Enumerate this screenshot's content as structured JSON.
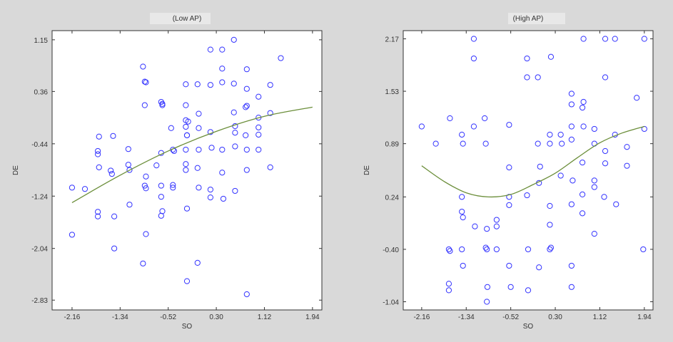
{
  "chart_data": [
    {
      "type": "scatter",
      "title": "(Low AP)",
      "xlabel": "SO",
      "ylabel": "DE",
      "xlim": [
        -2.5,
        2.1
      ],
      "ylim": [
        -2.98,
        1.29
      ],
      "xticks": [
        "-2.16",
        "-1.34",
        "-0.52",
        "0.30",
        "1.12",
        "1.94"
      ],
      "yticks": [
        "1.15",
        "0.36",
        "-0.44",
        "-1.24",
        "-2.04",
        "-2.83"
      ],
      "grid": false,
      "marker_color": "#3333ff",
      "fit_color": "#6b8e3a",
      "points": [
        [
          -2.16,
          -1.11
        ],
        [
          -2.16,
          -1.83
        ],
        [
          -1.94,
          -1.13
        ],
        [
          -1.7,
          -0.33
        ],
        [
          -1.72,
          -0.55
        ],
        [
          -1.72,
          -0.6
        ],
        [
          -1.7,
          -0.8
        ],
        [
          -1.72,
          -1.48
        ],
        [
          -1.72,
          -1.55
        ],
        [
          -1.5,
          -0.85
        ],
        [
          -1.48,
          -0.9
        ],
        [
          -1.46,
          -0.32
        ],
        [
          -1.44,
          -1.55
        ],
        [
          -1.44,
          -2.04
        ],
        [
          -1.2,
          -0.52
        ],
        [
          -1.2,
          -0.76
        ],
        [
          -1.18,
          -0.84
        ],
        [
          -1.18,
          -1.37
        ],
        [
          -0.95,
          0.74
        ],
        [
          -0.92,
          0.51
        ],
        [
          -0.9,
          0.5
        ],
        [
          -0.92,
          0.15
        ],
        [
          -0.9,
          -0.94
        ],
        [
          -0.92,
          -1.08
        ],
        [
          -0.9,
          -1.12
        ],
        [
          -0.9,
          -1.82
        ],
        [
          -0.95,
          -2.27
        ],
        [
          -0.72,
          -0.77
        ],
        [
          -0.64,
          0.2
        ],
        [
          -0.62,
          0.15
        ],
        [
          -0.62,
          0.17
        ],
        [
          -0.64,
          -0.58
        ],
        [
          -0.64,
          -1.08
        ],
        [
          -0.64,
          -1.25
        ],
        [
          -0.62,
          -1.47
        ],
        [
          -0.64,
          -1.54
        ],
        [
          -0.47,
          -0.2
        ],
        [
          -0.44,
          -0.53
        ],
        [
          -0.42,
          -0.55
        ],
        [
          -0.44,
          -1.07
        ],
        [
          -0.44,
          -1.11
        ],
        [
          -0.22,
          -0.18
        ],
        [
          -0.22,
          0.47
        ],
        [
          -0.22,
          -0.53
        ],
        [
          -0.22,
          0.15
        ],
        [
          -0.22,
          -0.08
        ],
        [
          -0.18,
          -0.1
        ],
        [
          -0.2,
          -0.31
        ],
        [
          -0.2,
          -0.31
        ],
        [
          -0.22,
          -0.75
        ],
        [
          -0.22,
          -0.84
        ],
        [
          -0.2,
          -1.43
        ],
        [
          -0.2,
          -2.54
        ],
        [
          -0.02,
          0.47
        ],
        [
          0.0,
          -0.2
        ],
        [
          0.0,
          0.02
        ],
        [
          0.0,
          -0.53
        ],
        [
          -0.02,
          -0.81
        ],
        [
          0.0,
          -1.11
        ],
        [
          -0.02,
          -2.26
        ],
        [
          0.2,
          1.0
        ],
        [
          0.2,
          0.46
        ],
        [
          0.2,
          -0.26
        ],
        [
          0.22,
          -0.5
        ],
        [
          0.2,
          -1.14
        ],
        [
          0.2,
          -1.26
        ],
        [
          0.4,
          1.0
        ],
        [
          0.4,
          0.71
        ],
        [
          0.4,
          0.5
        ],
        [
          0.4,
          -0.53
        ],
        [
          0.4,
          -0.88
        ],
        [
          0.42,
          -1.28
        ],
        [
          0.6,
          1.15
        ],
        [
          0.6,
          0.48
        ],
        [
          0.6,
          0.04
        ],
        [
          0.62,
          -0.17
        ],
        [
          0.62,
          -0.27
        ],
        [
          0.62,
          -0.48
        ],
        [
          0.62,
          -1.16
        ],
        [
          0.82,
          0.7
        ],
        [
          0.82,
          0.4
        ],
        [
          0.82,
          0.14
        ],
        [
          0.8,
          0.12
        ],
        [
          0.8,
          -0.31
        ],
        [
          0.82,
          -0.53
        ],
        [
          0.82,
          -0.84
        ],
        [
          0.82,
          -2.74
        ],
        [
          1.02,
          0.28
        ],
        [
          1.02,
          -0.04
        ],
        [
          1.02,
          -0.19
        ],
        [
          1.02,
          -0.3
        ],
        [
          1.02,
          -0.53
        ],
        [
          1.22,
          0.46
        ],
        [
          1.22,
          0.03
        ],
        [
          1.22,
          -0.8
        ],
        [
          1.4,
          0.87
        ]
      ],
      "fit_curve": [
        [
          -2.16,
          -1.34
        ],
        [
          -1.34,
          -0.92
        ],
        [
          -0.52,
          -0.55
        ],
        [
          0.3,
          -0.25
        ],
        [
          1.12,
          -0.02
        ],
        [
          1.94,
          0.12
        ]
      ]
    },
    {
      "type": "scatter",
      "title": "(High AP)",
      "xlabel": "SO",
      "ylabel": "DE",
      "xlim": [
        -2.5,
        2.1
      ],
      "ylim": [
        -1.14,
        2.27
      ],
      "xticks": [
        "-2.16",
        "-1.34",
        "-0.52",
        "0.30",
        "1.12",
        "1.94"
      ],
      "yticks": [
        "2.17",
        "1.53",
        "0.89",
        "0.24",
        "-0.40",
        "-1.04"
      ],
      "grid": false,
      "marker_color": "#3333ff",
      "fit_color": "#6b8e3a",
      "points": [
        [
          -2.16,
          1.1
        ],
        [
          -1.9,
          0.89
        ],
        [
          -1.64,
          1.2
        ],
        [
          -1.66,
          -0.4
        ],
        [
          -1.64,
          -0.42
        ],
        [
          -1.66,
          -0.82
        ],
        [
          -1.66,
          -0.9
        ],
        [
          -1.42,
          1.0
        ],
        [
          -1.4,
          0.89
        ],
        [
          -1.42,
          0.24
        ],
        [
          -1.42,
          0.06
        ],
        [
          -1.4,
          -0.01
        ],
        [
          -1.42,
          -0.4
        ],
        [
          -1.4,
          -0.6
        ],
        [
          -1.2,
          2.17
        ],
        [
          -1.2,
          1.93
        ],
        [
          -1.2,
          1.1
        ],
        [
          -1.18,
          -0.12
        ],
        [
          -1.0,
          1.2
        ],
        [
          -0.98,
          0.89
        ],
        [
          -0.98,
          -0.38
        ],
        [
          -0.96,
          -0.4
        ],
        [
          -0.96,
          -0.15
        ],
        [
          -0.96,
          -1.04
        ],
        [
          -0.95,
          -0.86
        ],
        [
          -0.78,
          -0.4
        ],
        [
          -0.78,
          -0.12
        ],
        [
          -0.78,
          -0.04
        ],
        [
          -0.55,
          1.12
        ],
        [
          -0.55,
          0.6
        ],
        [
          -0.55,
          0.24
        ],
        [
          -0.55,
          0.14
        ],
        [
          -0.55,
          -0.6
        ],
        [
          -0.52,
          -0.86
        ],
        [
          -0.22,
          1.93
        ],
        [
          -0.22,
          1.7
        ],
        [
          -0.2,
          -0.9
        ],
        [
          -0.2,
          -0.4
        ],
        [
          -0.22,
          0.26
        ],
        [
          -0.02,
          1.7
        ],
        [
          -0.02,
          0.89
        ],
        [
          0.02,
          0.61
        ],
        [
          0.0,
          0.41
        ],
        [
          0.0,
          -0.62
        ],
        [
          0.2,
          1.0
        ],
        [
          0.2,
          0.89
        ],
        [
          0.22,
          1.95
        ],
        [
          0.2,
          -0.4
        ],
        [
          0.22,
          -0.38
        ],
        [
          0.2,
          -0.1
        ],
        [
          0.2,
          0.13
        ],
        [
          0.4,
          1.0
        ],
        [
          0.4,
          0.5
        ],
        [
          0.42,
          0.89
        ],
        [
          0.6,
          1.5
        ],
        [
          0.6,
          1.37
        ],
        [
          0.6,
          1.1
        ],
        [
          0.6,
          0.94
        ],
        [
          0.62,
          0.44
        ],
        [
          0.6,
          0.15
        ],
        [
          0.6,
          -0.6
        ],
        [
          0.6,
          -0.86
        ],
        [
          0.82,
          2.17
        ],
        [
          0.82,
          1.4
        ],
        [
          0.8,
          1.33
        ],
        [
          0.82,
          1.1
        ],
        [
          0.8,
          0.66
        ],
        [
          0.8,
          0.27
        ],
        [
          0.8,
          0.04
        ],
        [
          1.02,
          1.07
        ],
        [
          1.02,
          0.89
        ],
        [
          1.02,
          0.44
        ],
        [
          1.02,
          0.36
        ],
        [
          1.02,
          -0.21
        ],
        [
          1.22,
          2.17
        ],
        [
          1.22,
          1.7
        ],
        [
          1.22,
          0.8
        ],
        [
          1.22,
          0.65
        ],
        [
          1.2,
          0.24
        ],
        [
          1.4,
          2.17
        ],
        [
          1.4,
          1.0
        ],
        [
          1.42,
          0.15
        ],
        [
          1.62,
          0.85
        ],
        [
          1.62,
          0.62
        ],
        [
          1.8,
          1.45
        ],
        [
          1.94,
          2.17
        ],
        [
          1.94,
          1.07
        ],
        [
          1.92,
          -0.4
        ]
      ],
      "fit_curve": [
        [
          -2.16,
          0.62
        ],
        [
          -1.75,
          0.43
        ],
        [
          -1.34,
          0.29
        ],
        [
          -0.93,
          0.24
        ],
        [
          -0.52,
          0.27
        ],
        [
          -0.11,
          0.39
        ],
        [
          0.3,
          0.53
        ],
        [
          0.71,
          0.72
        ],
        [
          1.12,
          0.9
        ],
        [
          1.53,
          1.02
        ],
        [
          1.94,
          1.1
        ]
      ]
    }
  ]
}
